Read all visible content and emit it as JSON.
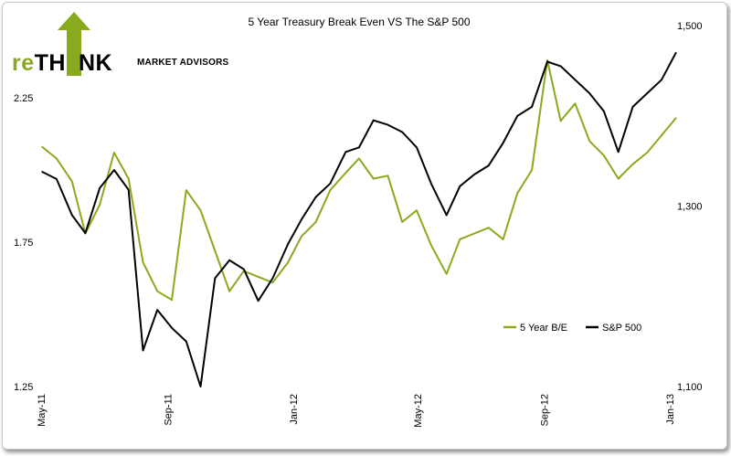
{
  "logo": {
    "re": "re",
    "th": "TH",
    "nk": "NK",
    "tagline": "MARKET ADVISORS"
  },
  "colors": {
    "series1": "#8aaa1e",
    "series2": "#000000",
    "logo_green": "#8aaa1e"
  },
  "chart_data": {
    "type": "line",
    "title": "5 Year Treasury Break Even VS The S&P 500",
    "x_ticks": [
      "May-11",
      "Sep-11",
      "Jan-12",
      "May-12",
      "Sep-12",
      "Jan-13"
    ],
    "y_left": {
      "ticks": [
        "1.25",
        "1.75",
        "2.25"
      ],
      "range": [
        1.25,
        2.5
      ]
    },
    "y_right": {
      "ticks": [
        "1,100",
        "1,300",
        "1,500"
      ],
      "range": [
        1100,
        1500
      ]
    },
    "legend": {
      "position": "bottom-right"
    },
    "grid": false,
    "series": [
      {
        "name": "5 Year B/E",
        "axis": "left",
        "x": [
          "2011-05-02",
          "2011-05-16",
          "2011-05-31",
          "2011-06-13",
          "2011-06-27",
          "2011-07-11",
          "2011-07-25",
          "2011-08-08",
          "2011-08-22",
          "2011-09-05",
          "2011-09-19",
          "2011-10-03",
          "2011-10-17",
          "2011-10-31",
          "2011-11-14",
          "2011-11-28",
          "2011-12-12",
          "2011-12-27",
          "2012-01-09",
          "2012-01-23",
          "2012-02-06",
          "2012-02-21",
          "2012-03-05",
          "2012-03-19",
          "2012-04-02",
          "2012-04-16",
          "2012-04-30",
          "2012-05-14",
          "2012-05-29",
          "2012-06-11",
          "2012-06-25",
          "2012-07-09",
          "2012-07-23",
          "2012-08-06",
          "2012-08-20",
          "2012-09-04",
          "2012-09-17",
          "2012-10-01",
          "2012-10-15",
          "2012-10-29",
          "2012-11-12",
          "2012-11-26",
          "2012-12-10",
          "2012-12-24",
          "2013-01-07"
        ],
        "y": [
          2.08,
          2.04,
          1.96,
          1.78,
          1.88,
          2.06,
          1.97,
          1.68,
          1.58,
          1.55,
          1.93,
          1.86,
          1.72,
          1.58,
          1.65,
          1.63,
          1.61,
          1.68,
          1.77,
          1.82,
          1.93,
          1.99,
          2.04,
          1.97,
          1.98,
          1.82,
          1.86,
          1.74,
          1.64,
          1.76,
          1.78,
          1.8,
          1.76,
          1.92,
          2.0,
          2.38,
          2.17,
          2.23,
          2.1,
          2.05,
          1.97,
          2.02,
          2.06,
          2.12,
          2.18
        ]
      },
      {
        "name": "S&P 500",
        "axis": "right",
        "x": [
          "2011-05-02",
          "2011-05-16",
          "2011-05-31",
          "2011-06-13",
          "2011-06-27",
          "2011-07-11",
          "2011-07-25",
          "2011-08-08",
          "2011-08-22",
          "2011-09-05",
          "2011-09-19",
          "2011-10-03",
          "2011-10-17",
          "2011-10-31",
          "2011-11-14",
          "2011-11-28",
          "2011-12-12",
          "2011-12-27",
          "2012-01-09",
          "2012-01-23",
          "2012-02-06",
          "2012-02-21",
          "2012-03-05",
          "2012-03-19",
          "2012-04-02",
          "2012-04-16",
          "2012-04-30",
          "2012-05-14",
          "2012-05-29",
          "2012-06-11",
          "2012-06-25",
          "2012-07-09",
          "2012-07-23",
          "2012-08-06",
          "2012-08-20",
          "2012-09-04",
          "2012-09-17",
          "2012-10-01",
          "2012-10-15",
          "2012-10-29",
          "2012-11-12",
          "2012-11-26",
          "2012-12-10",
          "2012-12-24",
          "2013-01-07"
        ],
        "y": [
          1338,
          1330,
          1290,
          1270,
          1320,
          1340,
          1318,
          1140,
          1185,
          1165,
          1150,
          1100,
          1220,
          1240,
          1230,
          1195,
          1220,
          1258,
          1285,
          1310,
          1325,
          1360,
          1365,
          1395,
          1390,
          1382,
          1365,
          1325,
          1290,
          1322,
          1335,
          1345,
          1370,
          1400,
          1410,
          1460,
          1455,
          1440,
          1425,
          1405,
          1360,
          1410,
          1425,
          1440,
          1470
        ]
      }
    ]
  }
}
